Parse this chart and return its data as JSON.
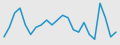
{
  "values": [
    1.5,
    3.5,
    6.5,
    7.5,
    4.0,
    2.0,
    3.5,
    4.0,
    5.0,
    4.0,
    5.0,
    6.0,
    5.5,
    3.0,
    2.5,
    4.5,
    2.0,
    1.0,
    8.5,
    5.5,
    1.5,
    2.5
  ],
  "line_color": "#2196c8",
  "background_color": "#e8e8e8",
  "linewidth": 1.1
}
